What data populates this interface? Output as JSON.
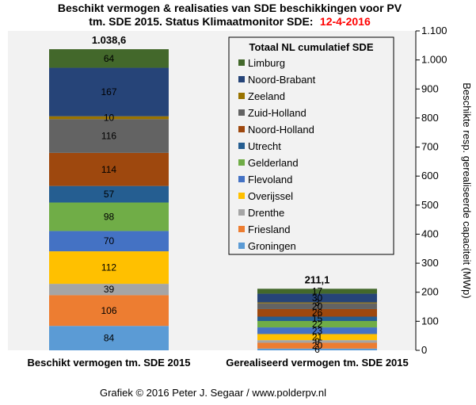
{
  "title": {
    "line1": "Beschikt vermogen & realisaties van SDE beschikkingen  voor PV",
    "line2_prefix": "tm. SDE 2015. Status Klimaatmonitor  SDE:",
    "line2_date": "12-4-2016",
    "date_color": "#ff0000"
  },
  "credit": "Grafiek  © 2016 Peter J. Segaar / www.polderpv.nl",
  "chart_data": {
    "type": "bar",
    "stacked": true,
    "categories": [
      "Beschikt vermogen tm. SDE 2015",
      "Gerealiseerd vermogen tm. SDE 2015"
    ],
    "totals": [
      "1.038,6",
      "211,1"
    ],
    "ylabel": "Beschikte resp. gerealiseerde  capaciteit (MWp)",
    "ylim": [
      0,
      1100
    ],
    "yticks": [
      0,
      100,
      200,
      300,
      400,
      500,
      600,
      700,
      800,
      900,
      1000,
      1100
    ],
    "ytick_labels": [
      "0",
      "100",
      "200",
      "300",
      "400",
      "500",
      "600",
      "700",
      "800",
      "900",
      "1.000",
      "1.100"
    ],
    "y_axis_side": "right",
    "grid": false,
    "plot_background": "#f2f2f2",
    "legend_title": "Totaal NL cumulatief SDE",
    "legend_position": "top-right",
    "series": [
      {
        "name": "Groningen",
        "color": "#5b9bd5",
        "values": [
          84,
          6
        ]
      },
      {
        "name": "Friesland",
        "color": "#ed7d31",
        "values": [
          106,
          20
        ]
      },
      {
        "name": "Drenthe",
        "color": "#a5a5a5",
        "values": [
          39,
          9
        ]
      },
      {
        "name": "Overijssel",
        "color": "#ffc000",
        "values": [
          112,
          21
        ]
      },
      {
        "name": "Flevoland",
        "color": "#4472c4",
        "values": [
          70,
          23
        ]
      },
      {
        "name": "Gelderland",
        "color": "#70ad47",
        "values": [
          98,
          22
        ]
      },
      {
        "name": "Utrecht",
        "color": "#255e91",
        "values": [
          57,
          15
        ]
      },
      {
        "name": "Noord-Holland",
        "color": "#9e480e",
        "values": [
          114,
          26
        ]
      },
      {
        "name": "Zuid-Holland",
        "color": "#636363",
        "values": [
          116,
          20
        ]
      },
      {
        "name": "Zeeland",
        "color": "#997300",
        "values": [
          10,
          3
        ]
      },
      {
        "name": "Noord-Brabant",
        "color": "#264478",
        "values": [
          167,
          30
        ]
      },
      {
        "name": "Limburg",
        "color": "#43682b",
        "values": [
          64,
          17
        ]
      }
    ]
  }
}
